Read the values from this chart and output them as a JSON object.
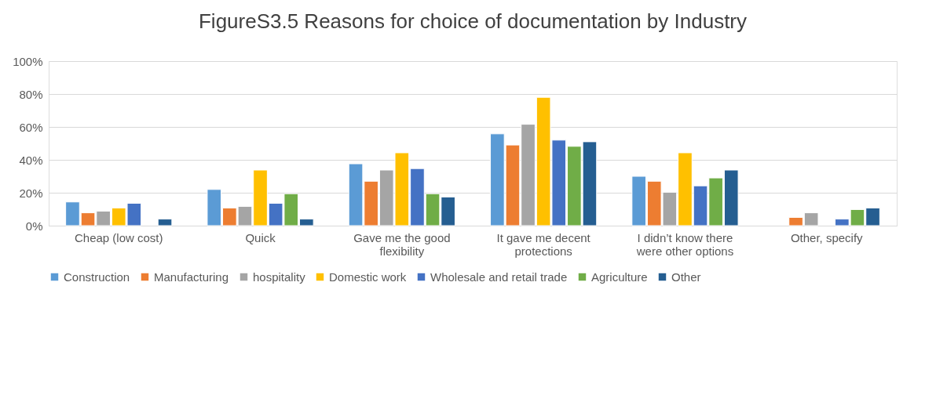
{
  "chart_data": {
    "type": "bar",
    "title": "FigureS3.5 Reasons for choice of documentation by Industry",
    "categories": [
      "Cheap (low cost)",
      "Quick",
      "Gave me the good flexibility",
      "It gave me decent protections",
      "I didn’t know there were other options",
      "Other, specify"
    ],
    "series": [
      {
        "name": "Construction",
        "color": "#5b9bd5",
        "values": [
          14.4,
          22,
          37.6,
          55.8,
          30,
          null
        ]
      },
      {
        "name": "Manufacturing",
        "color": "#ed7d31",
        "values": [
          7.8,
          10.7,
          27,
          49,
          27,
          5
        ]
      },
      {
        "name": "hospitality",
        "color": "#a5a5a5",
        "values": [
          8.8,
          11.7,
          33.8,
          61.6,
          20.3,
          7.8
        ]
      },
      {
        "name": "Domestic work",
        "color": "#ffc000",
        "values": [
          10.7,
          33.8,
          44.3,
          78,
          44.3,
          null
        ]
      },
      {
        "name": "Wholesale and retail trade",
        "color": "#4472c4",
        "values": [
          13.6,
          13.6,
          34.7,
          52,
          24.2,
          4
        ]
      },
      {
        "name": "Agriculture",
        "color": "#70ad47",
        "values": [
          null,
          19.4,
          19.4,
          48.2,
          29,
          9.8
        ]
      },
      {
        "name": "Other",
        "color": "#255e91",
        "values": [
          4,
          4,
          17.4,
          51,
          33.8,
          10.7
        ]
      }
    ],
    "ylim": [
      0,
      100
    ],
    "yticks": [
      {
        "value": 0,
        "label": "0%"
      },
      {
        "value": 20,
        "label": "20%"
      },
      {
        "value": 40,
        "label": "40%"
      },
      {
        "value": 60,
        "label": "60%"
      },
      {
        "value": 80,
        "label": "80%"
      },
      {
        "value": 100,
        "label": "100%"
      }
    ],
    "grid": "y",
    "legend": "bottom"
  }
}
